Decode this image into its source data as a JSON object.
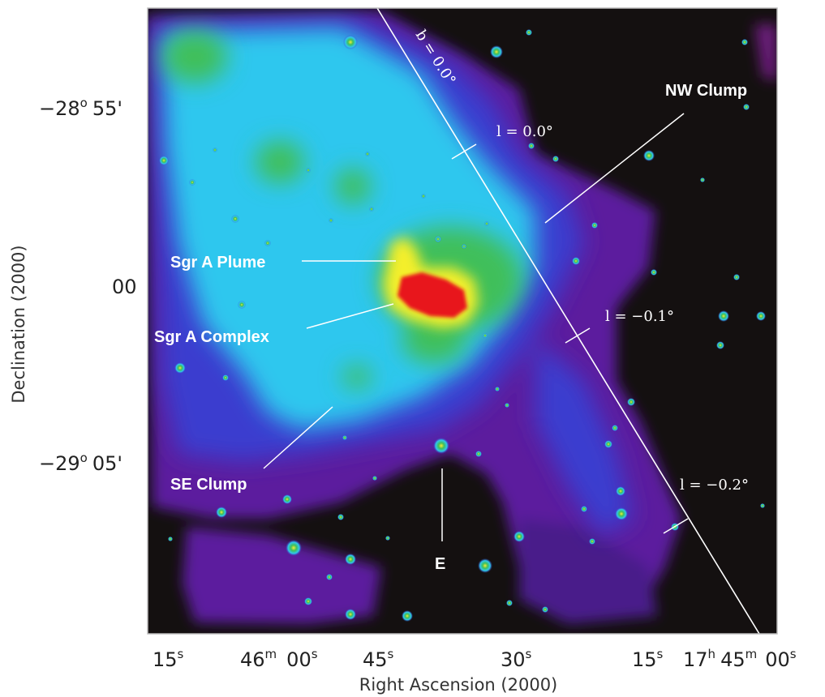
{
  "figure": {
    "x_axis_title": "Right Ascension (2000)",
    "y_axis_title": "Declination (2000)",
    "x_ticks": [
      {
        "main": "15",
        "sup": "s"
      },
      {
        "main": "46",
        "sup": "m",
        "main2": "00",
        "sup2": "s"
      },
      {
        "main": "45",
        "sup": "s"
      },
      {
        "main": "30",
        "sup": "s"
      },
      {
        "main": "15",
        "sup": "s"
      },
      {
        "main": "17",
        "sup": "h",
        "main2": "45",
        "sup2": "m",
        "main3": "00",
        "sup3": "s"
      }
    ],
    "y_ticks": [
      {
        "main": "−28",
        "sup": "o",
        "main2": "55'"
      },
      {
        "main": "00"
      },
      {
        "main": "−29",
        "sup": "o",
        "main2": "05'"
      }
    ],
    "labels": {
      "nw_clump": "NW Clump",
      "sgr_a_plume": "Sgr A Plume",
      "sgr_a_complex": "Sgr A Complex",
      "se_clump": "SE Clump",
      "e": "E"
    },
    "coordinate_labels": {
      "b0": "b = 0.0°",
      "l0": "l = 0.0°",
      "lm01": "l = −0.1°",
      "lm02": "l = −0.2°"
    },
    "colors": {
      "background": "#141010",
      "purple": "#5c1a9e",
      "blue": "#3a3ccf",
      "cyan": "#2fc7ee",
      "green": "#3fbf5a",
      "yellow": "#f4ef2a",
      "red": "#e8141c"
    }
  }
}
